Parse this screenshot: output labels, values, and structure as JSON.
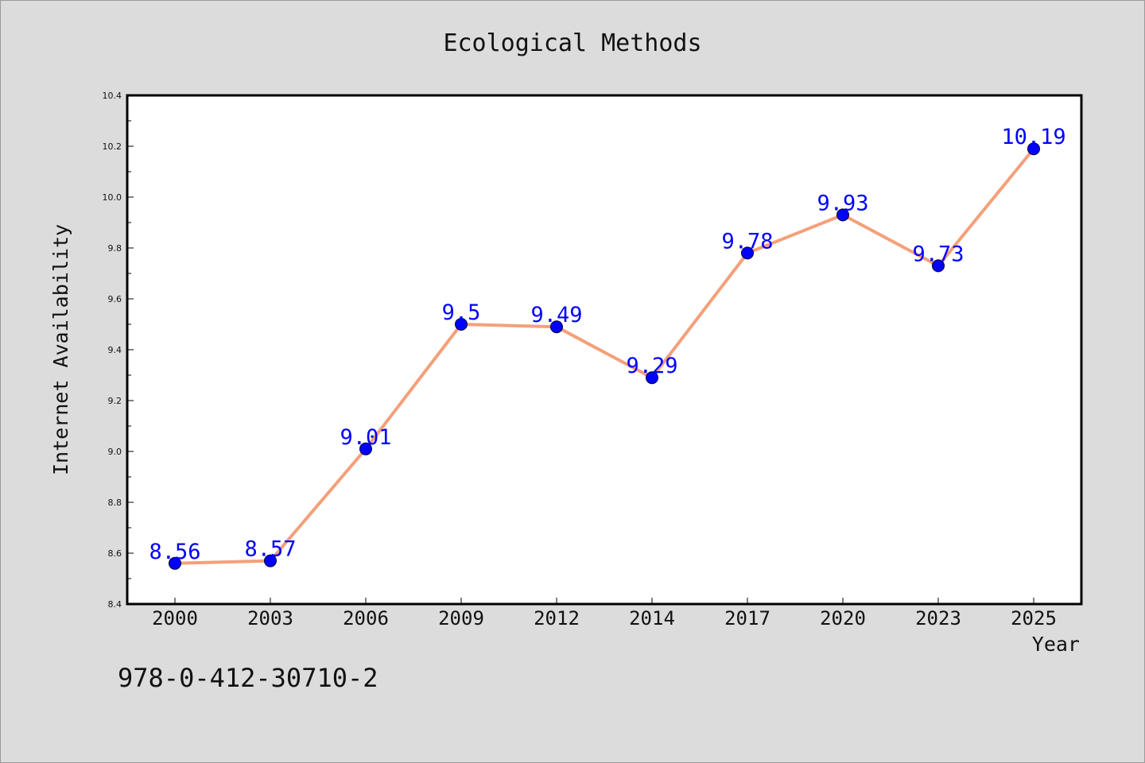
{
  "chart_data": {
    "type": "line",
    "title": "Ecological Methods",
    "xlabel": "Year",
    "ylabel": "Internet Availability",
    "categories": [
      "2000",
      "2003",
      "2006",
      "2009",
      "2012",
      "2014",
      "2017",
      "2020",
      "2023",
      "2025"
    ],
    "series": [
      {
        "values": [
          8.56,
          8.57,
          9.01,
          9.5,
          9.49,
          9.29,
          9.78,
          9.93,
          9.73,
          10.19
        ]
      }
    ],
    "data_labels": [
      "8.56",
      "8.57",
      "9.01",
      "9.5",
      "9.49",
      "9.29",
      "9.78",
      "9.93",
      "9.73",
      "10.19"
    ],
    "ylim": [
      8.4,
      10.4
    ],
    "yticks": [
      "8.4",
      "8.6",
      "8.8",
      "9.0",
      "9.2",
      "9.4",
      "9.6",
      "9.8",
      "10.0",
      "10.2",
      "10.4"
    ],
    "grid": false,
    "legend": "none",
    "colors": {
      "line": "#f4a07a",
      "marker": "#0000ff",
      "label": "#0000ff",
      "background": "#dcdcdc",
      "plot_background": "#ffffff"
    }
  },
  "footer_text": "978-0-412-30710-2"
}
